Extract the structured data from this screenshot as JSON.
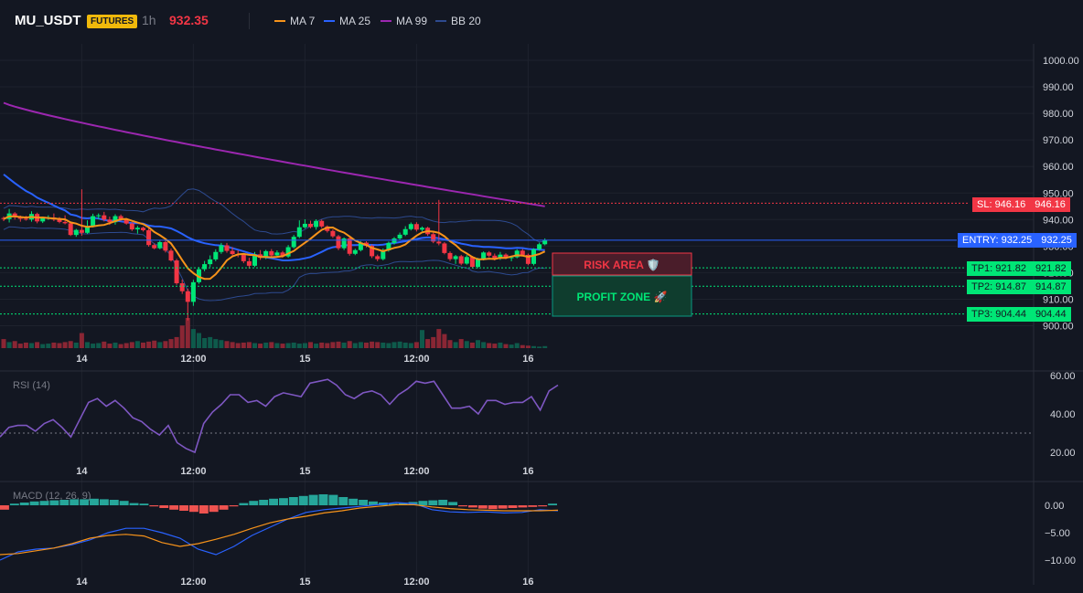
{
  "header": {
    "symbol": "MU_USDT",
    "badge": "FUTURES",
    "timeframe": "1h",
    "price": "932.35",
    "legend": [
      {
        "name": "MA 7",
        "color": "#f7931a"
      },
      {
        "name": "MA 25",
        "color": "#2962ff"
      },
      {
        "name": "MA 99",
        "color": "#9c27b0"
      },
      {
        "name": "BB 20",
        "color": "#2d4a8f"
      }
    ]
  },
  "colors": {
    "up": "#089981",
    "up_bright": "#00e676",
    "down": "#f23645",
    "bg": "#131722",
    "grid": "#1e222d"
  },
  "zones": {
    "risk_label": "RISK AREA 🛡️",
    "profit_label": "PROFIT ZONE 🚀"
  },
  "levels": {
    "sl": {
      "label": "SL: 946.16",
      "value": 946.16,
      "text": "946.16"
    },
    "entry": {
      "label": "ENTRY: 932.25",
      "value": 932.25,
      "text": "932.25"
    },
    "tp1": {
      "label": "TP1: 921.82",
      "value": 921.82,
      "text": "921.82"
    },
    "tp2": {
      "label": "TP2: 914.87",
      "value": 914.87,
      "text": "914.87"
    },
    "tp3": {
      "label": "TP3: 904.44",
      "value": 904.44,
      "text": "904.44"
    }
  },
  "chart_data": [
    {
      "type": "candlestick",
      "ylim": [
        895,
        1004
      ],
      "yticks": [
        "1000.00",
        "990.00",
        "980.00",
        "970.00",
        "960.00",
        "950.00",
        "940.00",
        "930.00",
        "920.00",
        "910.00",
        "900.00"
      ],
      "yticks_values": [
        1000,
        990,
        980,
        970,
        960,
        950,
        940,
        930,
        920,
        910,
        900
      ],
      "xticks": [
        "14",
        "12:00",
        "15",
        "12:00",
        "16"
      ],
      "xticks_index": [
        14,
        34,
        54,
        74,
        94
      ],
      "candles": [
        [
          940.6,
          941.2,
          939.4,
          940.2
        ],
        [
          940.2,
          944.0,
          938.9,
          942.3
        ],
        [
          942.3,
          942.8,
          940.0,
          941.0
        ],
        [
          941.0,
          941.5,
          939.2,
          940.3
        ],
        [
          940.3,
          941.4,
          939.6,
          940.0
        ],
        [
          940.0,
          943.1,
          939.2,
          942.1
        ],
        [
          942.1,
          942.6,
          938.6,
          939.3
        ],
        [
          939.3,
          940.8,
          938.7,
          940.5
        ],
        [
          940.5,
          941.6,
          939.9,
          940.8
        ],
        [
          940.8,
          942.3,
          939.4,
          940.0
        ],
        [
          940.0,
          940.9,
          938.6,
          939.1
        ],
        [
          939.1,
          941.6,
          938.2,
          938.6
        ],
        [
          938.6,
          939.0,
          933.8,
          934.2
        ],
        [
          934.2,
          936.5,
          933.5,
          936.1
        ],
        [
          936.1,
          951.4,
          933.9,
          935.0
        ],
        [
          935.0,
          939.7,
          934.6,
          937.6
        ],
        [
          937.6,
          942.2,
          937.0,
          941.3
        ],
        [
          941.3,
          942.3,
          940.1,
          941.6
        ],
        [
          941.6,
          942.9,
          939.3,
          940.0
        ],
        [
          940.0,
          941.1,
          938.0,
          939.0
        ],
        [
          939.0,
          942.0,
          938.1,
          941.3
        ],
        [
          941.3,
          941.9,
          939.5,
          940.0
        ],
        [
          940.0,
          940.5,
          938.1,
          938.5
        ],
        [
          938.5,
          939.0,
          935.7,
          936.3
        ],
        [
          936.3,
          937.6,
          934.7,
          936.9
        ],
        [
          936.9,
          937.3,
          935.5,
          936.0
        ],
        [
          936.0,
          936.6,
          929.8,
          930.4
        ],
        [
          930.4,
          931.0,
          928.8,
          929.2
        ],
        [
          929.2,
          932.0,
          928.8,
          931.5
        ],
        [
          931.5,
          932.1,
          927.6,
          928.3
        ],
        [
          928.3,
          929.1,
          924.2,
          924.6
        ],
        [
          924.6,
          925.2,
          915.4,
          916.0
        ],
        [
          916.0,
          917.4,
          912.0,
          913.0
        ],
        [
          913.0,
          914.0,
          902.0,
          909.0
        ],
        [
          909.0,
          917.3,
          907.5,
          916.4
        ],
        [
          916.4,
          922.1,
          915.8,
          921.3
        ],
        [
          921.3,
          924.4,
          920.5,
          923.2
        ],
        [
          923.2,
          926.5,
          922.1,
          925.0
        ],
        [
          925.0,
          928.8,
          924.3,
          927.8
        ],
        [
          927.8,
          931.2,
          927.1,
          930.3
        ],
        [
          930.3,
          931.2,
          927.5,
          928.2
        ],
        [
          928.2,
          929.6,
          926.5,
          927.0
        ],
        [
          927.0,
          928.4,
          925.8,
          926.8
        ],
        [
          926.8,
          927.4,
          923.6,
          924.3
        ],
        [
          924.3,
          925.6,
          921.5,
          922.6
        ],
        [
          922.6,
          927.8,
          922.1,
          926.9
        ],
        [
          926.9,
          928.5,
          924.8,
          925.6
        ],
        [
          925.6,
          928.6,
          925.1,
          928.1
        ],
        [
          928.1,
          928.9,
          925.7,
          926.5
        ],
        [
          926.5,
          928.4,
          925.9,
          927.6
        ],
        [
          927.6,
          928.2,
          925.6,
          926.1
        ],
        [
          926.1,
          930.4,
          925.6,
          929.6
        ],
        [
          929.6,
          934.2,
          929.1,
          933.5
        ],
        [
          933.5,
          939.7,
          933.0,
          937.1
        ],
        [
          937.1,
          940.1,
          936.6,
          938.4
        ],
        [
          938.4,
          939.6,
          936.7,
          937.2
        ],
        [
          937.2,
          940.1,
          936.2,
          939.5
        ],
        [
          939.5,
          940.0,
          936.8,
          937.4
        ],
        [
          937.4,
          937.8,
          935.1,
          935.7
        ],
        [
          935.7,
          936.3,
          933.1,
          933.7
        ],
        [
          933.7,
          934.2,
          928.5,
          929.2
        ],
        [
          929.2,
          933.3,
          928.5,
          932.9
        ],
        [
          932.9,
          933.4,
          926.4,
          927.1
        ],
        [
          927.1,
          929.0,
          926.6,
          928.5
        ],
        [
          928.5,
          931.9,
          928.0,
          931.3
        ],
        [
          931.3,
          931.8,
          929.5,
          930.1
        ],
        [
          930.1,
          930.6,
          925.5,
          926.2
        ],
        [
          926.2,
          926.8,
          924.3,
          925.1
        ],
        [
          925.1,
          929.1,
          924.6,
          928.4
        ],
        [
          928.4,
          931.7,
          927.9,
          931.2
        ],
        [
          931.2,
          933.4,
          930.6,
          932.9
        ],
        [
          932.9,
          935.1,
          932.4,
          934.3
        ],
        [
          934.3,
          937.5,
          933.8,
          936.4
        ],
        [
          936.4,
          938.9,
          935.9,
          938.3
        ],
        [
          938.3,
          939.0,
          935.5,
          936.2
        ],
        [
          936.2,
          937.4,
          935.6,
          936.9
        ],
        [
          936.9,
          937.3,
          933.9,
          934.5
        ],
        [
          934.5,
          935.1,
          931.1,
          931.7
        ],
        [
          931.7,
          947.4,
          930.3,
          931.0
        ],
        [
          931.0,
          931.5,
          926.9,
          927.4
        ],
        [
          927.4,
          928.0,
          924.4,
          925.1
        ],
        [
          925.1,
          926.7,
          923.3,
          926.2
        ],
        [
          926.2,
          926.7,
          922.8,
          923.4
        ],
        [
          923.4,
          926.6,
          923.0,
          925.9
        ],
        [
          925.9,
          926.3,
          921.6,
          922.2
        ],
        [
          922.2,
          925.6,
          921.7,
          925.1
        ],
        [
          925.1,
          928.0,
          924.6,
          927.6
        ],
        [
          927.6,
          928.1,
          925.8,
          926.4
        ],
        [
          926.4,
          927.2,
          924.6,
          925.3
        ],
        [
          925.3,
          927.8,
          924.8,
          926.8
        ],
        [
          926.8,
          927.3,
          925.1,
          925.6
        ],
        [
          925.6,
          926.1,
          924.3,
          925.8
        ],
        [
          925.8,
          928.8,
          925.4,
          928.3
        ],
        [
          928.3,
          928.9,
          926.2,
          926.7
        ],
        [
          926.7,
          927.2,
          922.8,
          923.3
        ],
        [
          923.3,
          929.2,
          922.7,
          928.8
        ],
        [
          928.8,
          931.3,
          928.3,
          930.7
        ],
        [
          930.7,
          932.9,
          930.3,
          932.3
        ]
      ],
      "volume": [
        18,
        12,
        14,
        9,
        11,
        10,
        12,
        8,
        9,
        11,
        10,
        12,
        14,
        11,
        30,
        12,
        9,
        10,
        13,
        9,
        11,
        8,
        10,
        12,
        14,
        11,
        13,
        15,
        12,
        14,
        18,
        22,
        45,
        60,
        38,
        30,
        20,
        22,
        18,
        16,
        14,
        12,
        10,
        11,
        12,
        10,
        9,
        11,
        12,
        10,
        9,
        10,
        11,
        9,
        10,
        12,
        9,
        11,
        10,
        12,
        13,
        11,
        14,
        10,
        12,
        11,
        13,
        12,
        11,
        10,
        12,
        13,
        11,
        10,
        12,
        36,
        18,
        22,
        38,
        28,
        16,
        12,
        18,
        14,
        11,
        16,
        12,
        10,
        9,
        11,
        8,
        7,
        10,
        6,
        5,
        4,
        3,
        4
      ]
    },
    {
      "type": "line",
      "title": "RSI (14)",
      "ylim": [
        15,
        64
      ],
      "yticks": [
        "60.00",
        "40.00",
        "20.00"
      ],
      "yticks_values": [
        60,
        40,
        20
      ],
      "xticks": [
        "14",
        "12:00",
        "15",
        "12:00",
        "16"
      ],
      "values": [
        28,
        33,
        34,
        34,
        31,
        35,
        37,
        33,
        28,
        37,
        46,
        48,
        44,
        47,
        43,
        38,
        36,
        32,
        29,
        34,
        25,
        22,
        20,
        35,
        41,
        45,
        50,
        50,
        46,
        47,
        44,
        49,
        51,
        50,
        49,
        56,
        57,
        58,
        55,
        50,
        48,
        51,
        52,
        50,
        45,
        50,
        53,
        57,
        56,
        57,
        50,
        43,
        43,
        44,
        40,
        47,
        47,
        45,
        46,
        46,
        49,
        42,
        52,
        55
      ]
    },
    {
      "type": "bar+line",
      "title": "MACD (12, 26, 9)",
      "ylim": [
        -12,
        3
      ],
      "yticks": [
        "0.00",
        "−5.00",
        "−10.00"
      ],
      "yticks_values": [
        0,
        -5,
        -10
      ],
      "xticks": [
        "14",
        "12:00",
        "15",
        "12:00",
        "16"
      ],
      "histogram": [
        -0.8,
        0.3,
        0.5,
        0.7,
        0.8,
        0.9,
        1.0,
        1.1,
        1.1,
        1.2,
        1.1,
        1.0,
        0.8,
        0.4,
        0.3,
        -0.2,
        -0.5,
        -0.8,
        -1.0,
        -1.2,
        -1.5,
        -1.2,
        -0.8,
        -0.2,
        0.4,
        0.8,
        1.0,
        1.2,
        1.3,
        1.5,
        1.7,
        1.9,
        2.0,
        1.9,
        1.5,
        1.2,
        1.0,
        0.7,
        0.5,
        0.3,
        0.4,
        0.6,
        0.8,
        0.9,
        1.0,
        0.6,
        -0.2,
        -0.4,
        -0.6,
        -0.7,
        -0.6,
        -0.5,
        -0.4,
        -0.3,
        -0.2,
        0.3
      ],
      "macd": [
        -10,
        -8.5,
        -8,
        -7.8,
        -7.2,
        -6.3,
        -5,
        -4.2,
        -4.2,
        -5,
        -6,
        -8,
        -9,
        -7.5,
        -5.5,
        -4,
        -2.5,
        -1.3,
        -0.8,
        -0.5,
        -0.2,
        0.1,
        0.5,
        0.3,
        -0.8,
        -1.2,
        -1.3,
        -1.2,
        -1.4,
        -1.3,
        -0.8,
        -1.0
      ],
      "signal": [
        -9,
        -8.8,
        -8.3,
        -7.8,
        -7.0,
        -6.0,
        -5.5,
        -5.3,
        -5.6,
        -6.8,
        -7.5,
        -7.0,
        -6.2,
        -5.3,
        -4.2,
        -3.2,
        -2.5,
        -2.0,
        -1.4,
        -1.0,
        -0.5,
        -0.2,
        0.1,
        0.1,
        -0.3,
        -0.6,
        -0.8,
        -0.9,
        -1.0,
        -1.0,
        -1.0,
        -0.9
      ]
    }
  ]
}
